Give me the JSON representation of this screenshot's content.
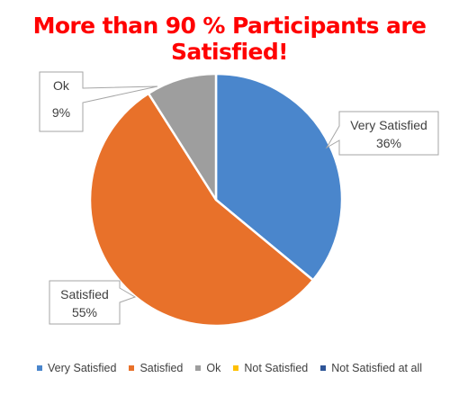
{
  "title": "More than 90 % Participants are Satisfied!",
  "title_color": "#ff0000",
  "chart_data": {
    "type": "pie",
    "title": "More than 90 % Participants are Satisfied!",
    "categories": [
      "Very Satisfied",
      "Satisfied",
      "Ok",
      "Not Satisfied",
      "Not Satisfied at all"
    ],
    "values": [
      36,
      55,
      9,
      0,
      0
    ],
    "value_labels": [
      "36%",
      "55%",
      "9%",
      "",
      ""
    ],
    "colors": [
      "#4a86cc",
      "#e8712a",
      "#9e9e9e",
      "#ffc000",
      "#2e5597"
    ],
    "legend_position": "bottom",
    "start_angle_deg": 0,
    "direction": "clockwise"
  }
}
